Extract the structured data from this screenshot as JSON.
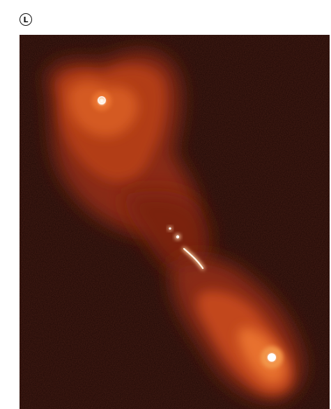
{
  "figure": {
    "panel_label": "L",
    "image_description_kind": "radio galaxy false-color image",
    "colors": {
      "background": "#1a0604",
      "lobe_outer": "#8a2a12",
      "lobe_mid": "#c2461c",
      "lobe_inner": "#e8712e",
      "hotspot": "#fff4e6"
    }
  }
}
